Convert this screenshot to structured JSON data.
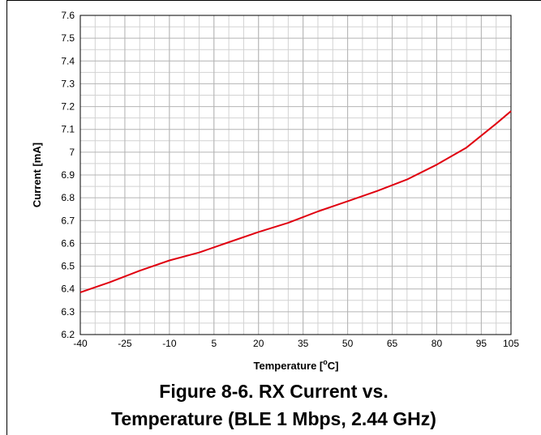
{
  "chart_data": {
    "type": "line",
    "xlabel_main": "Temperature [",
    "xlabel_sup": "o",
    "xlabel_tail": "C]",
    "ylabel": "Current [mA]",
    "xlim": [
      -40,
      105
    ],
    "ylim": [
      6.2,
      7.6
    ],
    "x_ticks": [
      "-40",
      "-25",
      "-10",
      "5",
      "20",
      "35",
      "50",
      "65",
      "80",
      "95",
      "105"
    ],
    "y_ticks": [
      "6.2",
      "6.3",
      "6.4",
      "6.5",
      "6.6",
      "6.7",
      "6.8",
      "6.9",
      "7",
      "7.1",
      "7.2",
      "7.3",
      "7.4",
      "7.5",
      "7.6"
    ],
    "series": [
      {
        "color": "#e0000f",
        "x": [
          -40,
          -30,
          -20,
          -10,
          0,
          10,
          20,
          30,
          40,
          50,
          60,
          70,
          80,
          90,
          100,
          105
        ],
        "y": [
          6.385,
          6.43,
          6.48,
          6.525,
          6.56,
          6.605,
          6.65,
          6.69,
          6.74,
          6.785,
          6.83,
          6.88,
          6.945,
          7.02,
          7.125,
          7.18
        ]
      }
    ],
    "grid": true
  },
  "caption": {
    "line1": "Figure 8-6. RX Current vs.",
    "line2": "Temperature (BLE 1 Mbps, 2.44 GHz)"
  }
}
